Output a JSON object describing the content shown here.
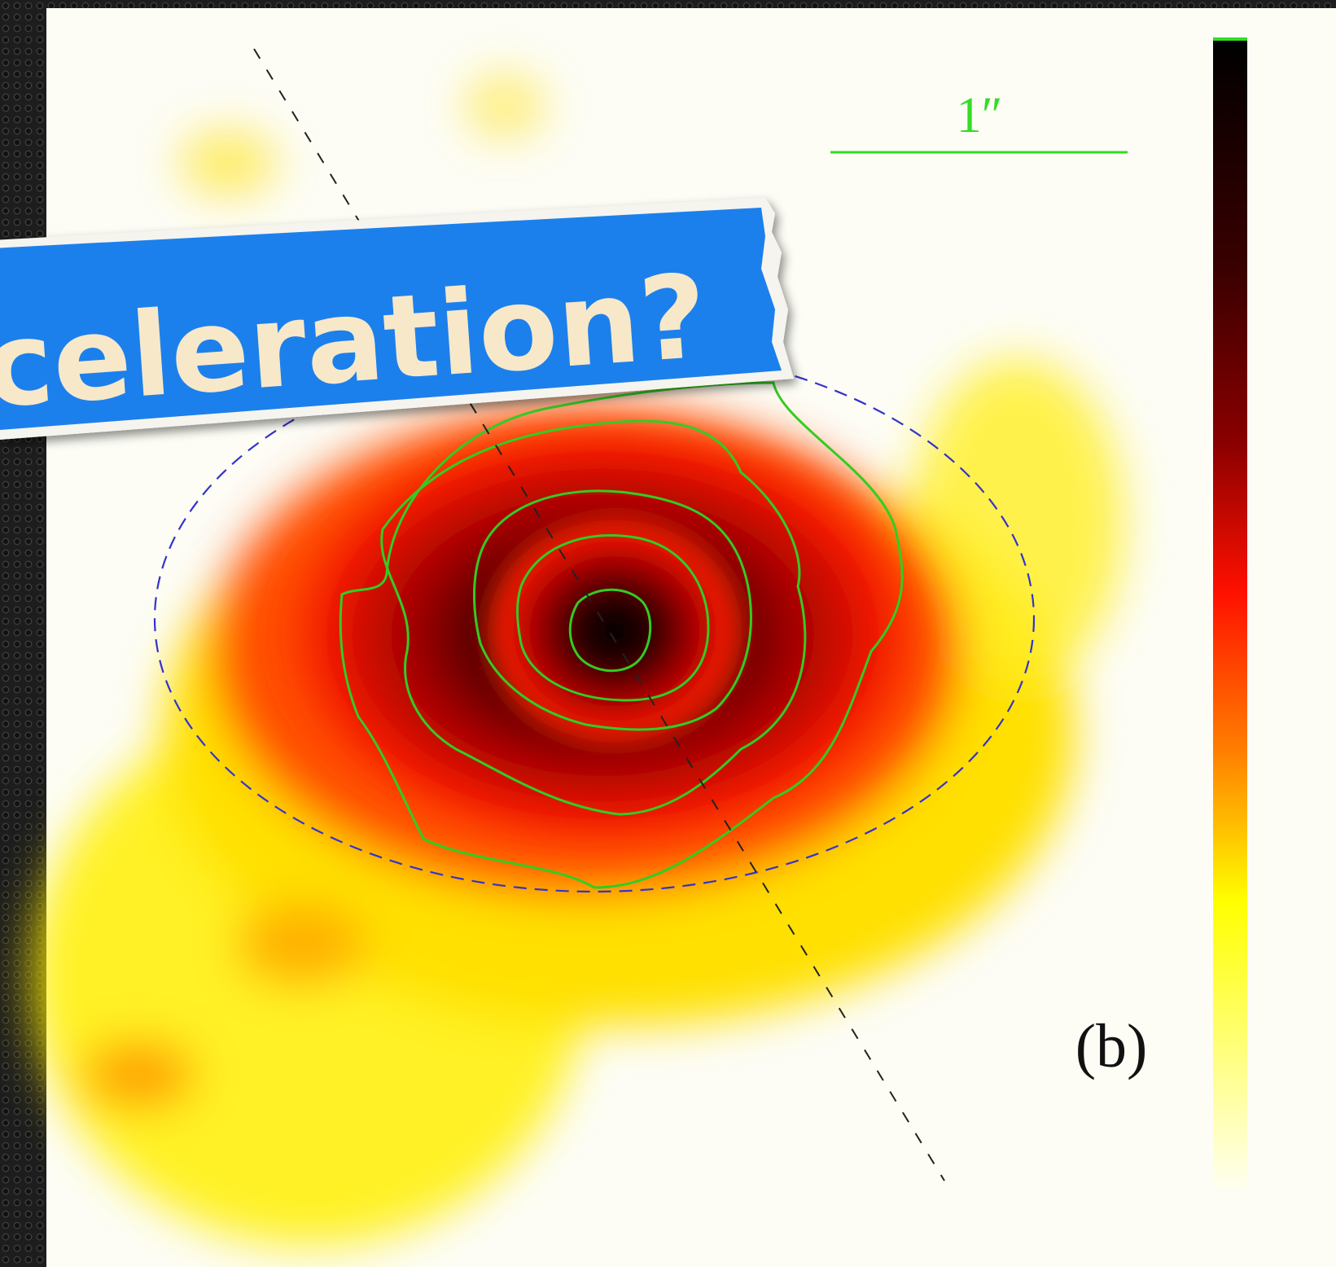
{
  "banner": {
    "text": "celeration?"
  },
  "figure": {
    "scale_label": "1″",
    "panel_label": "(b)"
  }
}
